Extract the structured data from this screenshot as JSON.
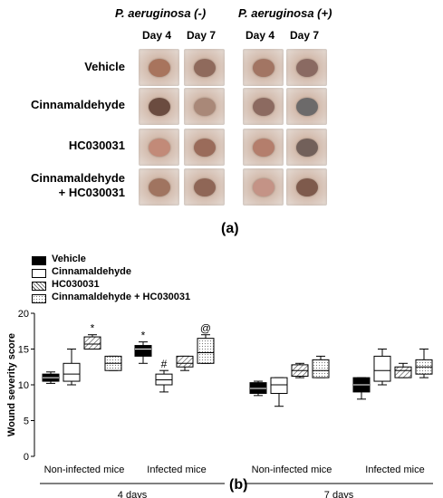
{
  "panel_a": {
    "groups": [
      {
        "title": "P. aeruginosa (-)",
        "days": [
          "Day 4",
          "Day 7"
        ]
      },
      {
        "title": "P. aeruginosa (+)",
        "days": [
          "Day 4",
          "Day 7"
        ]
      }
    ],
    "rows": [
      {
        "label": "Vehicle"
      },
      {
        "label": "Cinnamaldehyde"
      },
      {
        "label": "HC030031"
      },
      {
        "label_line1": "Cinnamaldehyde",
        "label_line2": "+ HC030031"
      }
    ],
    "wound_colors": [
      [
        "#a8745d",
        "#8f6a5c",
        "#a27563",
        "#8a6a62"
      ],
      [
        "#6b4c40",
        "#a98878",
        "#8c6a60",
        "#6c6a6a"
      ],
      [
        "#c28a78",
        "#9a6b5a",
        "#b47e6c",
        "#72605a"
      ],
      [
        "#a07460",
        "#8f6656",
        "#c49386",
        "#7e5a4c"
      ]
    ],
    "panel_label": "(a)"
  },
  "panel_b": {
    "panel_label": "(b)",
    "chart_data": {
      "type": "box",
      "ylabel": "Wound severity score",
      "ylim": [
        0,
        20
      ],
      "yticks": [
        0,
        5,
        10,
        15,
        20
      ],
      "legend": [
        {
          "name": "Vehicle",
          "pattern": "solid"
        },
        {
          "name": "Cinnamaldehyde",
          "pattern": "open"
        },
        {
          "name": "HC030031",
          "pattern": "hatch"
        },
        {
          "name": "Cinnamaldehyde + HC030031",
          "pattern": "dots"
        }
      ],
      "legend_position": "top-left",
      "group_labels": [
        "Non-infected mice",
        "Infected mice",
        "Non-infected mice",
        "Infected mice"
      ],
      "time_labels": [
        "4 days",
        "7 days"
      ],
      "groups": [
        {
          "group": "Non-infected mice",
          "time": "4 days",
          "boxes": [
            {
              "series": "Vehicle",
              "min": 10.2,
              "q1": 10.5,
              "median": 11.0,
              "q3": 11.5,
              "max": 11.8
            },
            {
              "series": "Cinnamaldehyde",
              "min": 10.0,
              "q1": 10.5,
              "median": 11.5,
              "q3": 13.0,
              "max": 15.0
            },
            {
              "series": "HC030031",
              "min": 15.0,
              "q1": 15.0,
              "median": 15.7,
              "q3": 16.7,
              "max": 17.0,
              "annotation": "*"
            },
            {
              "series": "Cinnamaldehyde + HC030031",
              "min": 12.0,
              "q1": 12.0,
              "median": 13.0,
              "q3": 14.0,
              "max": 14.0
            }
          ]
        },
        {
          "group": "Infected mice",
          "time": "4 days",
          "boxes": [
            {
              "series": "Vehicle",
              "min": 13.0,
              "q1": 14.0,
              "median": 15.0,
              "q3": 15.5,
              "max": 16.0,
              "annotation": "*"
            },
            {
              "series": "Cinnamaldehyde",
              "min": 9.0,
              "q1": 10.0,
              "median": 10.7,
              "q3": 11.5,
              "max": 12.0,
              "annotation": "#"
            },
            {
              "series": "HC030031",
              "min": 12.0,
              "q1": 12.5,
              "median": 13.0,
              "q3": 14.0,
              "max": 14.0
            },
            {
              "series": "Cinnamaldehyde + HC030031",
              "min": 13.0,
              "q1": 13.0,
              "median": 14.5,
              "q3": 16.5,
              "max": 17.0,
              "annotation": "@"
            }
          ]
        },
        {
          "group": "Non-infected mice",
          "time": "7 days",
          "boxes": [
            {
              "series": "Vehicle",
              "min": 8.5,
              "q1": 8.8,
              "median": 9.5,
              "q3": 10.3,
              "max": 10.5
            },
            {
              "series": "Cinnamaldehyde",
              "min": 7.0,
              "q1": 8.8,
              "median": 10.0,
              "q3": 11.0,
              "max": 11.0
            },
            {
              "series": "HC030031",
              "min": 11.0,
              "q1": 11.2,
              "median": 12.0,
              "q3": 12.8,
              "max": 13.0
            },
            {
              "series": "Cinnamaldehyde + HC030031",
              "min": 11.0,
              "q1": 11.0,
              "median": 12.0,
              "q3": 13.5,
              "max": 14.0
            }
          ]
        },
        {
          "group": "Infected mice",
          "time": "7 days",
          "boxes": [
            {
              "series": "Vehicle",
              "min": 8.0,
              "q1": 9.0,
              "median": 10.0,
              "q3": 11.0,
              "max": 11.0
            },
            {
              "series": "Cinnamaldehyde",
              "min": 10.0,
              "q1": 10.5,
              "median": 12.0,
              "q3": 14.0,
              "max": 15.0
            },
            {
              "series": "HC030031",
              "min": 11.0,
              "q1": 11.0,
              "median": 12.0,
              "q3": 12.5,
              "max": 13.0
            },
            {
              "series": "Cinnamaldehyde + HC030031",
              "min": 11.0,
              "q1": 11.5,
              "median": 12.5,
              "q3": 13.5,
              "max": 15.0
            }
          ]
        }
      ]
    }
  }
}
